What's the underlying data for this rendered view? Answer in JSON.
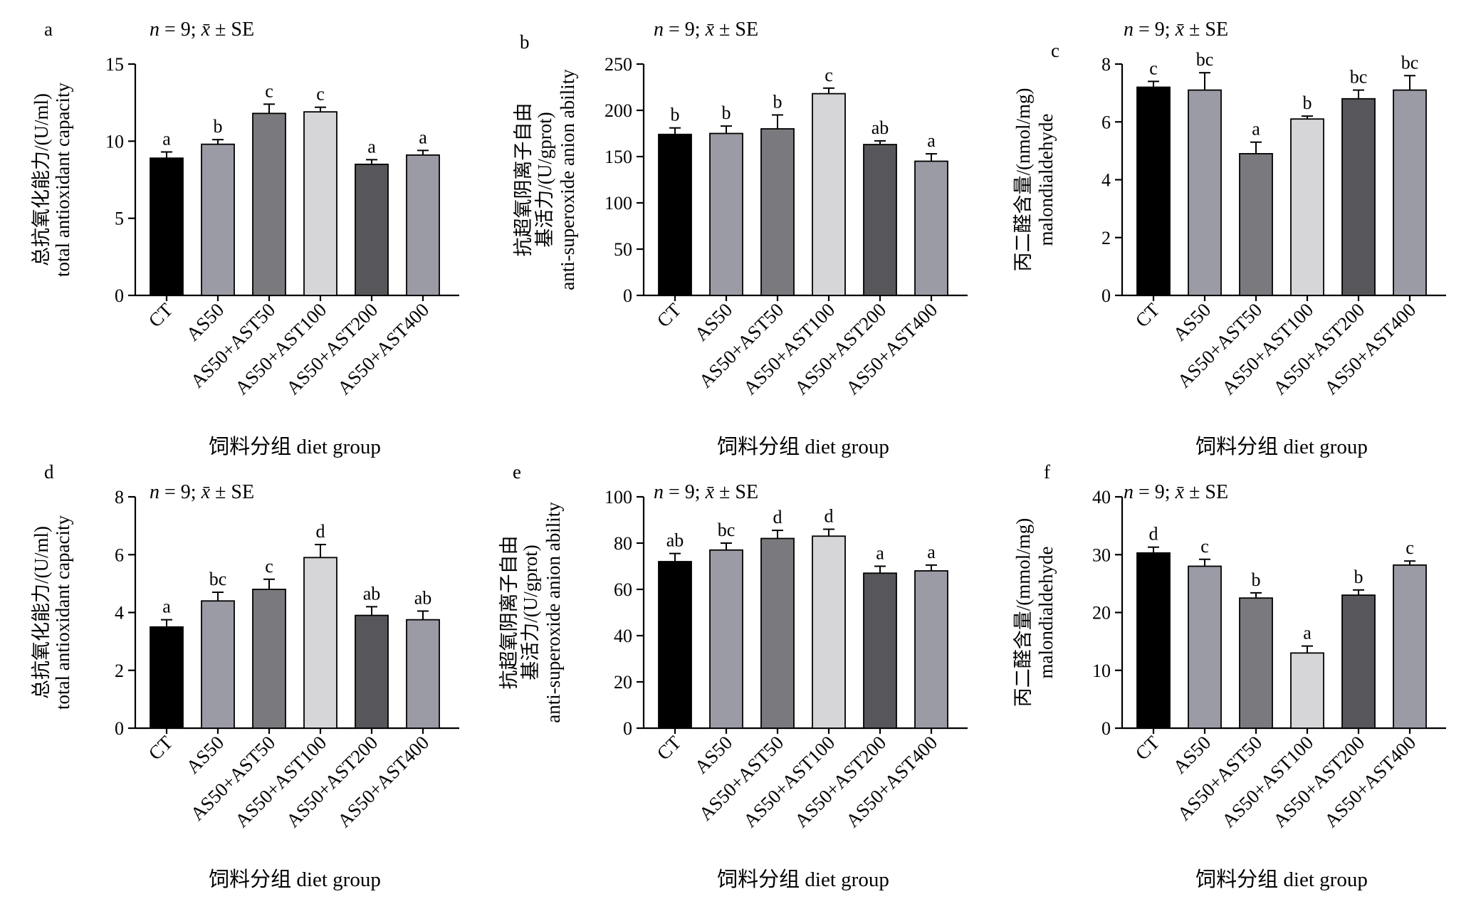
{
  "chart_data": [
    {
      "panel_label": "a",
      "type": "bar",
      "stat_note": "n = 9; x̄ ± SE",
      "ylabel": [
        "总抗氧化能力/(U/ml)",
        "total antioxidant capacity"
      ],
      "xlabel": "饲料分组 diet group",
      "categories": [
        "CT",
        "AS50",
        "AS50+AST50",
        "AS50+AST100",
        "AS50+AST200",
        "AS50+AST400"
      ],
      "values": [
        8.9,
        9.8,
        11.8,
        11.9,
        8.5,
        9.1
      ],
      "errors": [
        0.4,
        0.3,
        0.6,
        0.3,
        0.3,
        0.3
      ],
      "letters": [
        "a",
        "b",
        "c",
        "c",
        "a",
        "a"
      ],
      "ylim": [
        0,
        15
      ],
      "yticks": [
        "0",
        "5",
        "10",
        "15"
      ]
    },
    {
      "panel_label": "b",
      "type": "bar",
      "stat_note": "n = 9; x̄ ± SE",
      "ylabel": [
        "抗超氧阴离子自由",
        "基活力/(U/gprot)",
        "anti-superoxide anion ability"
      ],
      "xlabel": "饲料分组 diet group",
      "categories": [
        "CT",
        "AS50",
        "AS50+AST50",
        "AS50+AST100",
        "AS50+AST200",
        "AS50+AST400"
      ],
      "values": [
        174,
        175,
        180,
        218,
        163,
        145
      ],
      "errors": [
        7,
        8,
        15,
        6,
        4,
        8
      ],
      "letters": [
        "b",
        "b",
        "b",
        "c",
        "ab",
        "a"
      ],
      "ylim": [
        0,
        250
      ],
      "yticks": [
        "0",
        "50",
        "100",
        "150",
        "200",
        "250"
      ]
    },
    {
      "panel_label": "c",
      "type": "bar",
      "stat_note": "n = 9; x̄ ± SE",
      "ylabel": [
        "丙二醛含量/(nmol/mg)",
        "malondialdehyde"
      ],
      "xlabel": "饲料分组 diet group",
      "categories": [
        "CT",
        "AS50",
        "AS50+AST50",
        "AS50+AST100",
        "AS50+AST200",
        "AS50+AST400"
      ],
      "values": [
        7.2,
        7.1,
        4.9,
        6.1,
        6.8,
        7.1
      ],
      "errors": [
        0.2,
        0.6,
        0.4,
        0.1,
        0.3,
        0.5
      ],
      "letters": [
        "c",
        "bc",
        "a",
        "b",
        "bc",
        "bc"
      ],
      "ylim": [
        0,
        8
      ],
      "yticks": [
        "0",
        "2",
        "4",
        "6",
        "8"
      ]
    },
    {
      "panel_label": "d",
      "type": "bar",
      "stat_note": "n = 9; x̄ ± SE",
      "ylabel": [
        "总抗氧化能力/(U/ml)",
        "total antioxidant capacity"
      ],
      "xlabel": "饲料分组 diet group",
      "categories": [
        "CT",
        "AS50",
        "AS50+AST50",
        "AS50+AST100",
        "AS50+AST200",
        "AS50+AST400"
      ],
      "values": [
        3.5,
        4.4,
        4.8,
        5.9,
        3.9,
        3.75
      ],
      "errors": [
        0.25,
        0.3,
        0.35,
        0.45,
        0.3,
        0.3
      ],
      "letters": [
        "a",
        "bc",
        "c",
        "d",
        "ab",
        "ab"
      ],
      "ylim": [
        0,
        8
      ],
      "yticks": [
        "0",
        "2",
        "4",
        "6",
        "8"
      ]
    },
    {
      "panel_label": "e",
      "type": "bar",
      "stat_note": "n = 9; x̄ ± SE",
      "ylabel": [
        "抗超氧阴离子自由",
        "基活力/(U/gprot)",
        "anti-superoxide anion ability"
      ],
      "xlabel": "饲料分组 diet group",
      "categories": [
        "CT",
        "AS50",
        "AS50+AST50",
        "AS50+AST100",
        "AS50+AST200",
        "AS50+AST400"
      ],
      "values": [
        72,
        77,
        82,
        83,
        67,
        68
      ],
      "errors": [
        3.5,
        3,
        3.5,
        3,
        3,
        2.5
      ],
      "letters": [
        "ab",
        "bc",
        "d",
        "d",
        "a",
        "a"
      ],
      "ylim": [
        0,
        100
      ],
      "yticks": [
        "0",
        "20",
        "40",
        "60",
        "80",
        "100"
      ]
    },
    {
      "panel_label": "f",
      "type": "bar",
      "stat_note": "n = 9; x̄ ± SE",
      "ylabel": [
        "丙二醛含量/(mmol/mg)",
        "malondialdehyde"
      ],
      "xlabel": "饲料分组 diet group",
      "categories": [
        "CT",
        "AS50",
        "AS50+AST50",
        "AS50+AST100",
        "AS50+AST200",
        "AS50+AST400"
      ],
      "values": [
        30.3,
        28,
        22.5,
        13,
        23,
        28.2
      ],
      "errors": [
        1,
        1.2,
        0.9,
        1.2,
        0.9,
        0.7
      ],
      "letters": [
        "d",
        "c",
        "b",
        "a",
        "b",
        "c"
      ],
      "ylim": [
        0,
        40
      ],
      "yticks": [
        "0",
        "10",
        "20",
        "30",
        "40"
      ]
    }
  ],
  "bar_colors": [
    "#000000",
    "#9b9ba6",
    "#7a7a7e",
    "#d6d6d8",
    "#57575b",
    "#9b9ba6"
  ]
}
